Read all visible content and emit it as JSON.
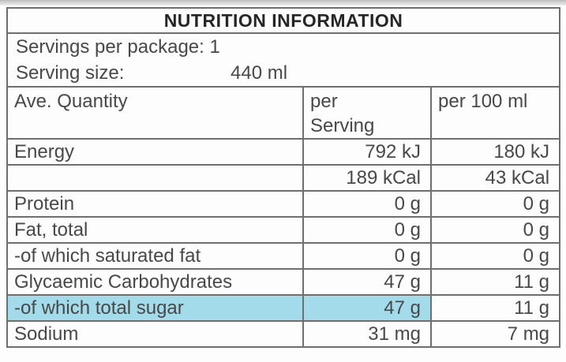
{
  "colors": {
    "highlight": "#a3dbea",
    "border": "#6f6f6f"
  },
  "table": {
    "title": "NUTRITION INFORMATION",
    "servings_per_package": "Servings per package: 1",
    "serving_size_label": "Serving size:",
    "serving_size_value": "440 ml",
    "columns": [
      "Ave. Quantity",
      "per\nServing",
      "per 100 ml"
    ],
    "rows": [
      {
        "label": "Energy",
        "per_serving": "792 kJ",
        "per_100ml": "180 kJ"
      },
      {
        "label": "",
        "per_serving": "189 kCal",
        "per_100ml": "43 kCal"
      },
      {
        "label": "Protein",
        "per_serving": "0 g",
        "per_100ml": "0 g"
      },
      {
        "label": "Fat, total",
        "per_serving": "0 g",
        "per_100ml": "0 g"
      },
      {
        "label": "-of which saturated fat",
        "per_serving": "0 g",
        "per_100ml": "0 g"
      },
      {
        "label": "Glycaemic Carbohydrates",
        "per_serving": "47 g",
        "per_100ml": "11 g"
      },
      {
        "label": "-of which total sugar",
        "per_serving": "47 g",
        "per_100ml": "11 g",
        "highlighted": true
      },
      {
        "label": "Sodium",
        "per_serving": "31 mg",
        "per_100ml": "7 mg"
      }
    ]
  }
}
